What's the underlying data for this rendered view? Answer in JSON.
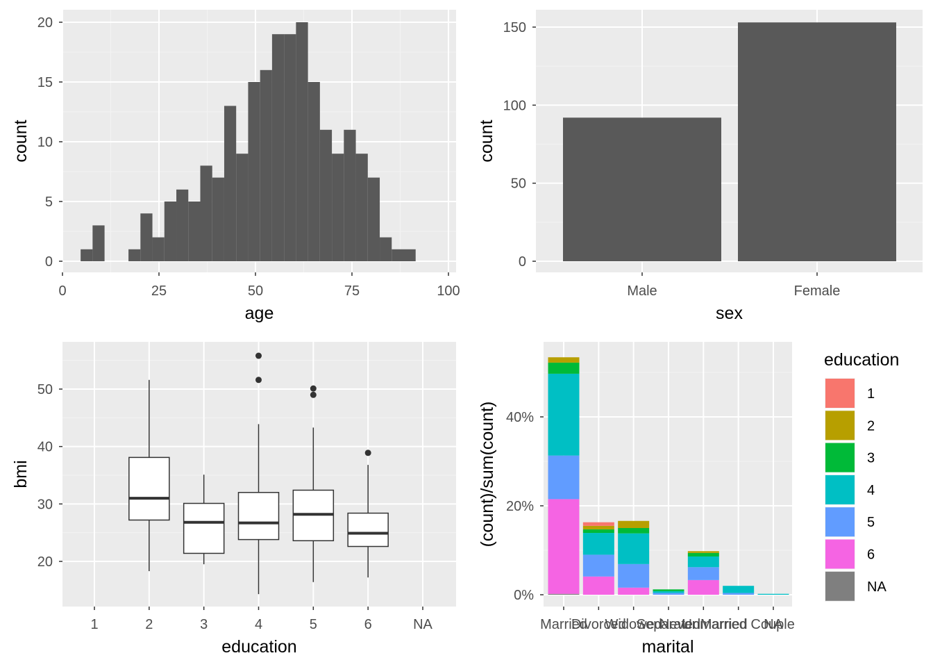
{
  "chart_data": [
    {
      "type": "bar",
      "subtype": "histogram",
      "xlabel": "age",
      "ylabel": "count",
      "xlim": [
        0,
        100
      ],
      "ylim": [
        0,
        20
      ],
      "xticks": [
        0,
        25,
        50,
        75,
        100
      ],
      "yticks": [
        0,
        5,
        10,
        15,
        20
      ],
      "grid": true,
      "bin_start": 4.7,
      "bin_width": 3.1,
      "values": [
        1,
        3,
        0,
        0,
        1,
        4,
        2,
        5,
        6,
        5,
        8,
        7,
        13,
        9,
        15,
        16,
        19,
        19,
        20,
        15,
        11,
        9,
        11,
        9,
        7,
        2,
        1,
        1
      ],
      "bar_color": "#595959"
    },
    {
      "type": "bar",
      "xlabel": "sex",
      "ylabel": "count",
      "categories": [
        "Male",
        "Female"
      ],
      "values": [
        92,
        153
      ],
      "ylim": [
        0,
        155
      ],
      "yticks": [
        0,
        50,
        100,
        150
      ],
      "grid": true,
      "bar_color": "#595959"
    },
    {
      "type": "boxplot",
      "xlabel": "education",
      "ylabel": "bmi",
      "categories": [
        "1",
        "2",
        "3",
        "4",
        "5",
        "6",
        "NA"
      ],
      "ylim": [
        14,
        57
      ],
      "yticks": [
        20,
        30,
        40,
        50
      ],
      "grid": true,
      "boxes": [
        {
          "category": "2",
          "min": 18.3,
          "q1": 27.2,
          "median": 31.0,
          "q3": 38.1,
          "max": 51.6,
          "outliers": []
        },
        {
          "category": "3",
          "min": 19.5,
          "q1": 21.4,
          "median": 26.8,
          "q3": 30.1,
          "max": 35.1,
          "outliers": []
        },
        {
          "category": "4",
          "min": 14.3,
          "q1": 23.8,
          "median": 26.7,
          "q3": 32.0,
          "max": 43.9,
          "outliers": [
            51.6,
            55.8
          ]
        },
        {
          "category": "5",
          "min": 16.4,
          "q1": 23.6,
          "median": 28.2,
          "q3": 32.4,
          "max": 43.3,
          "outliers": [
            49.0,
            50.1
          ]
        },
        {
          "category": "6",
          "min": 17.2,
          "q1": 22.6,
          "median": 24.9,
          "q3": 28.4,
          "max": 36.8,
          "outliers": [
            38.9
          ]
        }
      ]
    },
    {
      "type": "bar",
      "subtype": "stacked",
      "xlabel": "marital",
      "ylabel": "(count)/sum(count)",
      "categories": [
        "Married",
        "Divorced",
        "Widowed",
        "Separated",
        "Never Married",
        "Unmarried Couple",
        "NA"
      ],
      "ylim": [
        0,
        0.535
      ],
      "yticks": [
        0,
        0.2,
        0.4
      ],
      "ytick_labels": [
        "0%",
        "20%",
        "40%"
      ],
      "grid": true,
      "series": [
        {
          "name": "6",
          "values": [
            0.213,
            0.041,
            0.016,
            0.0,
            0.033,
            0.0,
            0.0
          ]
        },
        {
          "name": "5",
          "values": [
            0.098,
            0.049,
            0.053,
            0.004,
            0.029,
            0.004,
            0.0
          ]
        },
        {
          "name": "4",
          "values": [
            0.184,
            0.049,
            0.069,
            0.004,
            0.024,
            0.016,
            0.002
          ]
        },
        {
          "name": "3",
          "values": [
            0.025,
            0.008,
            0.012,
            0.004,
            0.008,
            0.0,
            0.0
          ]
        },
        {
          "name": "2",
          "values": [
            0.012,
            0.008,
            0.016,
            0.0,
            0.004,
            0.0,
            0.0
          ]
        },
        {
          "name": "1",
          "values": [
            0.0,
            0.008,
            0.0,
            0.0,
            0.0,
            0.0,
            0.0
          ]
        },
        {
          "name": "NA",
          "values": [
            0.002,
            0.0,
            0.0,
            0.0,
            0.0,
            0.0,
            0.0
          ]
        }
      ],
      "legend": {
        "title": "education",
        "placement": "right",
        "entries": [
          "1",
          "2",
          "3",
          "4",
          "5",
          "6",
          "NA"
        ]
      },
      "colors": {
        "1": "#F8766D",
        "2": "#B79F00",
        "3": "#00BA38",
        "4": "#00BFC4",
        "5": "#619CFF",
        "6": "#F564E3",
        "NA": "#7F7F7F"
      }
    }
  ]
}
